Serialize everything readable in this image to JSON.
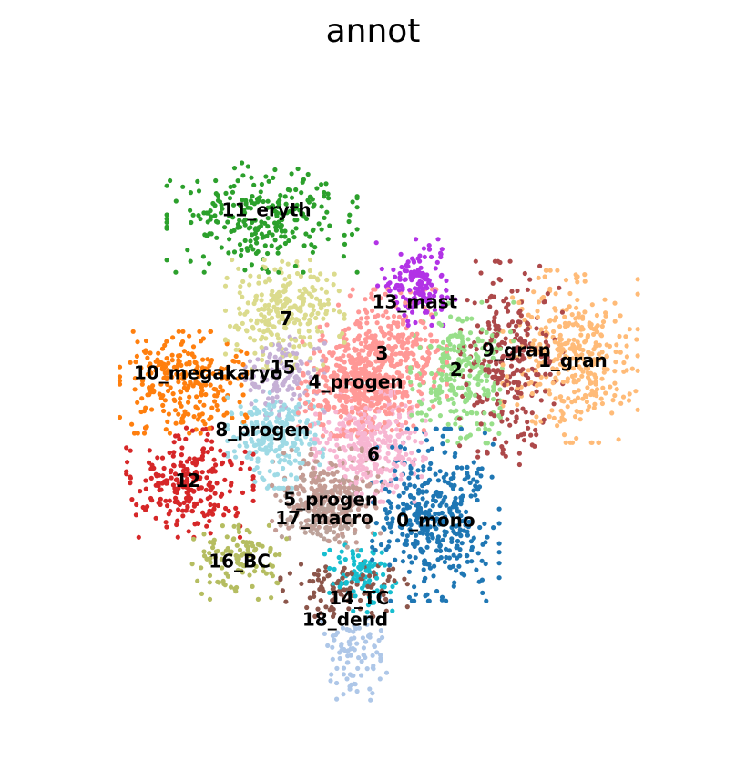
{
  "chart_data": {
    "type": "scatter",
    "title": "annot",
    "xlabel": "",
    "ylabel": "",
    "grid": false,
    "axes_visible": false,
    "xlim": [
      0,
      100
    ],
    "ylim": [
      0,
      100
    ],
    "clusters": [
      {
        "label": "0_mono",
        "color": "#1f77b4",
        "center": [
          59.5,
          33.0
        ],
        "spread": [
          8.0,
          11.0
        ],
        "n": 380
      },
      {
        "label": "1_gran",
        "color": "#ffbb78",
        "center": [
          80.0,
          57.5
        ],
        "spread": [
          8.5,
          11.0
        ],
        "n": 360
      },
      {
        "label": "2",
        "color": "#98df8a",
        "center": [
          63.5,
          55.0
        ],
        "spread": [
          6.5,
          9.0
        ],
        "n": 260
      },
      {
        "label": "3",
        "color": "#ff9896",
        "center": [
          51.5,
          57.0
        ],
        "spread": [
          8.0,
          9.0
        ],
        "n": 420
      },
      {
        "label": "4_progen",
        "color": "#ff9896",
        "center": [
          47.0,
          52.5
        ],
        "spread": [
          7.0,
          6.0
        ],
        "n": 300
      },
      {
        "label": "5_progen",
        "color": "#c49c94",
        "center": [
          43.0,
          36.0
        ],
        "spread": [
          7.0,
          6.0
        ],
        "n": 220
      },
      {
        "label": "6",
        "color": "#f7b6d2",
        "center": [
          49.5,
          43.5
        ],
        "spread": [
          7.0,
          7.0
        ],
        "n": 320
      },
      {
        "label": "7",
        "color": "#dbdb8d",
        "center": [
          36.5,
          64.0
        ],
        "spread": [
          7.5,
          7.0
        ],
        "n": 260
      },
      {
        "label": "8_progen",
        "color": "#9edae5",
        "center": [
          35.0,
          45.0
        ],
        "spread": [
          6.0,
          6.5
        ],
        "n": 240
      },
      {
        "label": "9_gran",
        "color": "#ad494a",
        "center": [
          71.0,
          56.5
        ],
        "spread": [
          6.5,
          13.0
        ],
        "n": 260
      },
      {
        "label": "10_megakaryo",
        "color": "#ff7f0e",
        "center": [
          21.0,
          53.5
        ],
        "spread": [
          8.0,
          6.5
        ],
        "n": 260
      },
      {
        "label": "11_eryth",
        "color": "#2ca02c",
        "center": [
          33.0,
          79.0
        ],
        "spread": [
          12.0,
          7.0
        ],
        "n": 260
      },
      {
        "label": "12",
        "color": "#d62728",
        "center": [
          22.0,
          38.0
        ],
        "spread": [
          8.0,
          7.0
        ],
        "n": 250
      },
      {
        "label": "13_mast",
        "color": "#b233e6",
        "center": [
          56.5,
          69.0
        ],
        "spread": [
          5.0,
          5.5
        ],
        "n": 150
      },
      {
        "label": "14_TC",
        "color": "#17becf",
        "center": [
          48.0,
          24.0
        ],
        "spread": [
          4.5,
          5.0
        ],
        "n": 90
      },
      {
        "label": "15",
        "color": "#c5b0d5",
        "center": [
          36.5,
          54.5
        ],
        "spread": [
          5.0,
          5.0
        ],
        "n": 120
      },
      {
        "label": "16_BC",
        "color": "#b5bd61",
        "center": [
          29.5,
          26.0
        ],
        "spread": [
          6.0,
          5.0
        ],
        "n": 110
      },
      {
        "label": "17_macro",
        "color": "#bca29a",
        "center": [
          42.5,
          33.0
        ],
        "spread": [
          5.5,
          4.5
        ],
        "n": 140
      },
      {
        "label": "18_dend",
        "color": "#8c564b",
        "center": [
          45.5,
          21.5
        ],
        "spread": [
          8.0,
          3.5
        ],
        "n": 110
      },
      {
        "label": "",
        "color": "#aec7e8",
        "center": [
          47.0,
          11.0
        ],
        "spread": [
          4.5,
          5.5
        ],
        "n": 90
      }
    ],
    "labels": [
      {
        "text": "11_eryth",
        "x": 33.7,
        "y": 80.0
      },
      {
        "text": "7",
        "x": 36.7,
        "y": 63.2
      },
      {
        "text": "13_mast",
        "x": 56.3,
        "y": 65.8
      },
      {
        "text": "3",
        "x": 51.3,
        "y": 57.8
      },
      {
        "text": "9_gran",
        "x": 71.8,
        "y": 58.3
      },
      {
        "text": "1_gran",
        "x": 80.4,
        "y": 56.7
      },
      {
        "text": "2",
        "x": 62.6,
        "y": 55.3
      },
      {
        "text": "15",
        "x": 36.2,
        "y": 55.6
      },
      {
        "text": "10_megakaryo",
        "x": 24.8,
        "y": 54.8
      },
      {
        "text": "4_progen",
        "x": 47.3,
        "y": 53.4
      },
      {
        "text": "8_progen",
        "x": 33.1,
        "y": 46.0
      },
      {
        "text": "6",
        "x": 50.0,
        "y": 42.2
      },
      {
        "text": "12",
        "x": 21.7,
        "y": 38.1
      },
      {
        "text": "5_progen",
        "x": 43.5,
        "y": 35.2
      },
      {
        "text": "17_macro",
        "x": 42.5,
        "y": 32.3
      },
      {
        "text": "0_mono",
        "x": 59.5,
        "y": 32.0
      },
      {
        "text": "16_BC",
        "x": 29.6,
        "y": 25.6
      },
      {
        "text": "14_TC",
        "x": 47.8,
        "y": 19.9
      },
      {
        "text": "18_dend",
        "x": 45.7,
        "y": 16.6
      }
    ]
  }
}
